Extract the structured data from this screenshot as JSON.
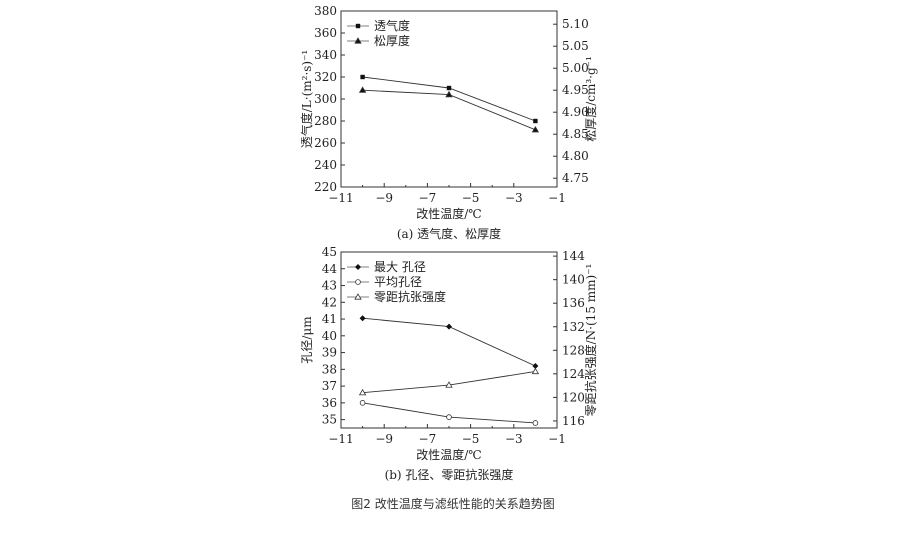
{
  "figure_caption": "图2 改性温度与滤纸性能的关系趋势图",
  "chart_data": [
    {
      "type": "line",
      "caption": "(a) 透气度、松厚度",
      "xlabel": "改性温度/℃",
      "ylabel": "透气度/L·(m²·s)⁻¹",
      "y2label": "松厚度/cm³·g⁻¹",
      "xlim": [
        -11,
        -1
      ],
      "xticks": [
        -11,
        -9,
        -7,
        -5,
        -3,
        -1
      ],
      "ylim": [
        220,
        380
      ],
      "yticks": [
        220,
        240,
        260,
        280,
        300,
        320,
        340,
        360,
        380
      ],
      "y2lim": [
        4.73,
        5.13
      ],
      "y2ticks": [
        "4.75",
        "4.80",
        "4.85",
        "4.90",
        "4.95",
        "5.00",
        "5.05",
        "5.10"
      ],
      "grid": false,
      "legend": "top-left",
      "x": [
        -10,
        -6,
        -2
      ],
      "series": [
        {
          "name": "透气度",
          "axis": "left",
          "marker": "square-filled",
          "values": [
            320,
            310,
            280
          ]
        },
        {
          "name": "松厚度",
          "axis": "right",
          "marker": "triangle-filled",
          "values": [
            4.95,
            4.94,
            4.86
          ]
        }
      ]
    },
    {
      "type": "line",
      "caption": "(b) 孔径、零距抗张强度",
      "xlabel": "改性温度/℃",
      "ylabel": "孔径/μm",
      "y2label": "零距抗张强度/N·(15 mm)⁻¹",
      "xlim": [
        -11,
        -1
      ],
      "xticks": [
        -11,
        -9,
        -7,
        -5,
        -3,
        -1
      ],
      "ylim": [
        34.5,
        45
      ],
      "yticks": [
        35,
        36,
        37,
        38,
        39,
        40,
        41,
        42,
        43,
        44,
        45
      ],
      "y2lim": [
        114.8,
        144.7
      ],
      "y2ticks": [
        116,
        120,
        124,
        128,
        132,
        136,
        140,
        144
      ],
      "grid": false,
      "legend": "top-left",
      "x": [
        -10,
        -6,
        -2
      ],
      "series": [
        {
          "name": "最大 孔径",
          "axis": "left",
          "marker": "diamond-filled",
          "values": [
            41.05,
            40.55,
            38.2
          ]
        },
        {
          "name": "平均孔径",
          "axis": "left",
          "marker": "circle-open",
          "values": [
            36.0,
            35.15,
            34.8
          ]
        },
        {
          "name": "零距抗张强度",
          "axis": "right",
          "marker": "triangle-open",
          "values": [
            120.8,
            122.1,
            124.4
          ]
        }
      ]
    }
  ]
}
